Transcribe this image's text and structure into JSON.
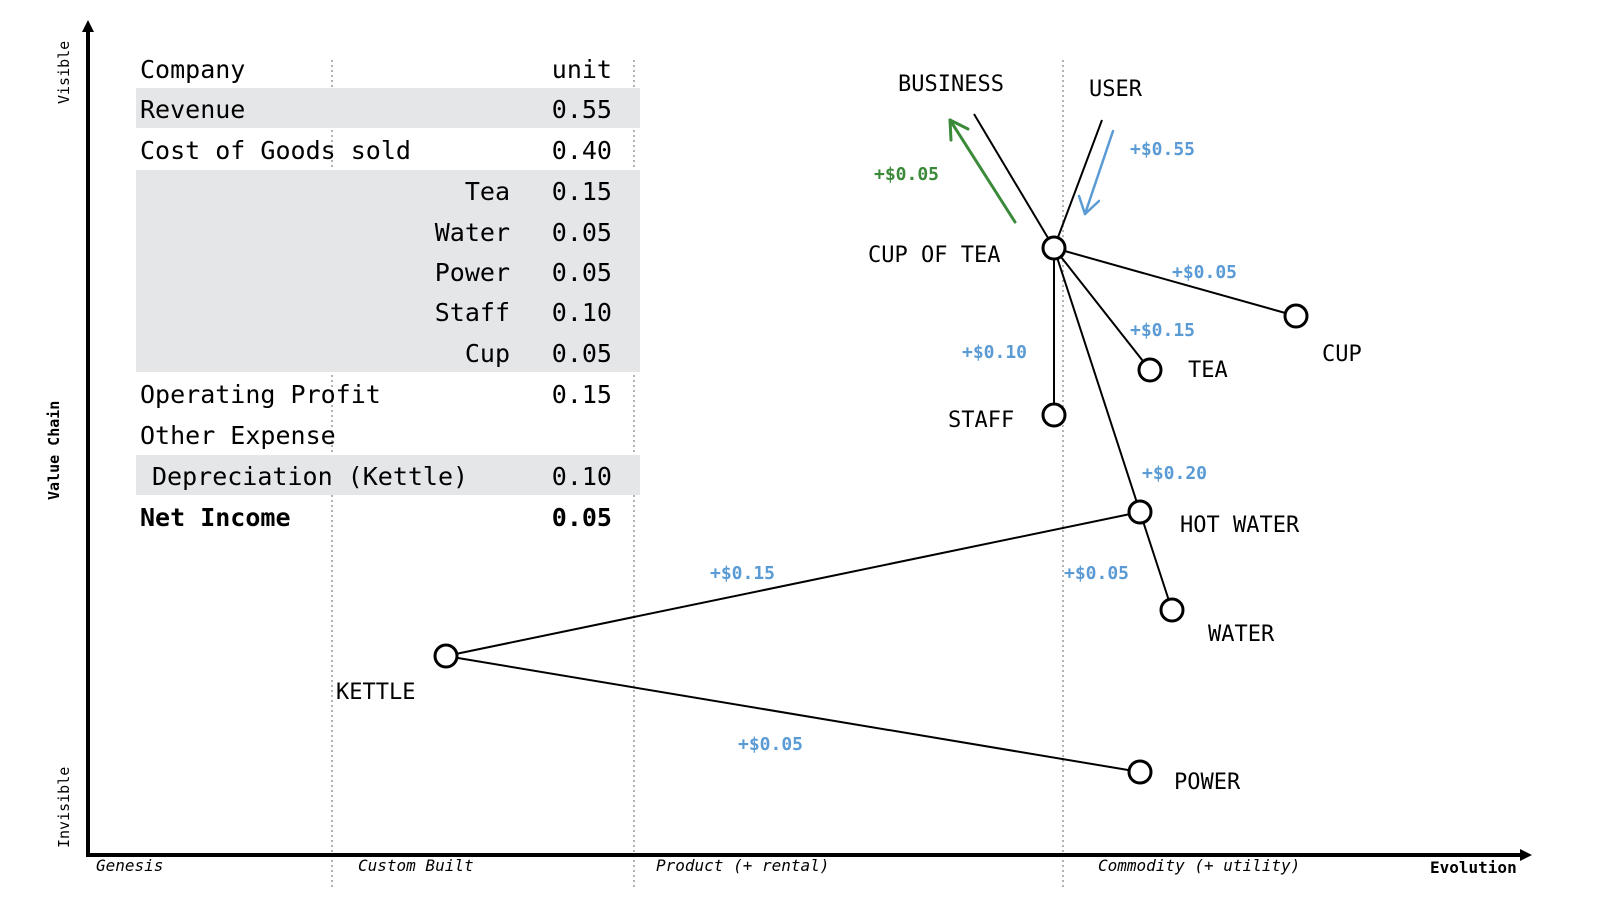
{
  "axes": {
    "y_title": "Value Chain",
    "y_top": "Visible",
    "y_bottom": "Invisible",
    "x_title": "Evolution",
    "stages": [
      "Genesis",
      "Custom Built",
      "Product (+ rental)",
      "Commodity (+ utility)"
    ]
  },
  "pl": {
    "header_label": "Company",
    "header_unit": "unit",
    "rows": [
      {
        "label": "Revenue",
        "value": "0.55"
      },
      {
        "label": "Cost of Goods sold",
        "value": "0.40"
      },
      {
        "label": "Tea",
        "value": "0.15"
      },
      {
        "label": "Water",
        "value": "0.05"
      },
      {
        "label": "Power",
        "value": "0.05"
      },
      {
        "label": "Staff",
        "value": "0.10"
      },
      {
        "label": "Cup",
        "value": "0.05"
      },
      {
        "label": "Operating Profit",
        "value": "0.15"
      },
      {
        "label": "Other Expense",
        "value": ""
      },
      {
        "label": "Depreciation (Kettle)",
        "value": "0.10"
      },
      {
        "label": "Net Income",
        "value": "0.05"
      }
    ]
  },
  "nodes": {
    "business": "BUSINESS",
    "user": "USER",
    "cup_of_tea": "CUP OF TEA",
    "cup": "CUP",
    "tea": "TEA",
    "staff": "STAFF",
    "hot_water": "HOT WATER",
    "water": "WATER",
    "kettle": "KETTLE",
    "power": "POWER"
  },
  "flows": {
    "business_gain": "+$0.05",
    "user_pay": "+$0.55",
    "cup": "+$0.05",
    "tea": "+$0.15",
    "staff": "+$0.10",
    "hot_water": "+$0.20",
    "kettle": "+$0.15",
    "water": "+$0.05",
    "power": "+$0.05"
  },
  "colors": {
    "cost": "#5b9bd5",
    "gain": "#3a8a3a",
    "band": "#e5e6e8"
  }
}
